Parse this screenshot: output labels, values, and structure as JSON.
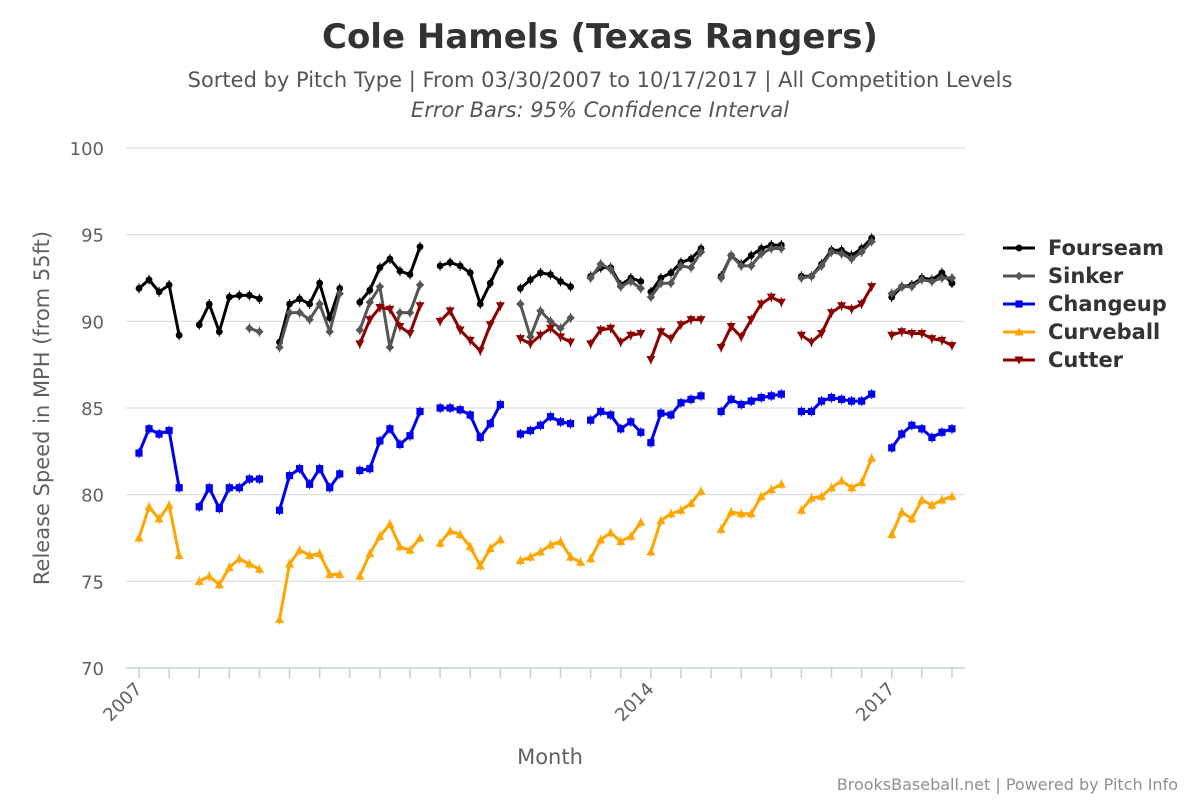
{
  "chart_data": {
    "type": "line",
    "title": "Cole Hamels (Texas Rangers)",
    "subtitle": "Sorted by Pitch Type | From 03/30/2007 to 10/17/2017 | All Competition Levels",
    "subtitle2": "Error Bars: 95% Confidence Interval",
    "xlabel": "Month",
    "ylabel": "Release Speed in MPH (from 55ft)",
    "ylim": [
      70,
      100
    ],
    "yticks": [
      70,
      75,
      80,
      85,
      90,
      95,
      100
    ],
    "xticks": [
      {
        "label": "2007",
        "index": 0
      },
      {
        "label": "2014",
        "index": 51
      },
      {
        "label": "2017",
        "index": 75
      }
    ],
    "x_count": 83,
    "grid": true,
    "error_bars": true,
    "legend_position": "right",
    "credit": "BrooksBaseball.net | Powered by Pitch Info",
    "series": [
      {
        "name": "Fourseam",
        "color": "#000000",
        "marker": "circle",
        "segments": [
          {
            "start": 0,
            "values": [
              91.9,
              92.4,
              91.7,
              92.1,
              89.2
            ]
          },
          {
            "start": 6,
            "values": [
              89.8,
              91.0,
              89.4,
              91.4,
              91.5,
              91.5,
              91.3
            ]
          },
          {
            "start": 14,
            "values": [
              88.8,
              91.0,
              91.3,
              91.0,
              92.2,
              90.2,
              91.9
            ]
          },
          {
            "start": 22,
            "values": [
              91.1,
              91.8,
              93.1,
              93.6,
              92.9,
              92.7,
              94.3
            ]
          },
          {
            "start": 30,
            "values": [
              93.2,
              93.4,
              93.2,
              92.8,
              91.0,
              92.2,
              93.4
            ]
          },
          {
            "start": 38,
            "values": [
              91.9,
              92.4,
              92.8,
              92.7,
              92.3,
              92.0
            ]
          },
          {
            "start": 45,
            "values": [
              92.6,
              93.1,
              93.1,
              92.1,
              92.5,
              92.3
            ]
          },
          {
            "start": 51,
            "values": [
              91.7,
              92.5,
              92.8,
              93.4,
              93.6,
              94.2
            ]
          },
          {
            "start": 58,
            "values": [
              92.6,
              93.8,
              93.3,
              93.8,
              94.2,
              94.4,
              94.4
            ]
          },
          {
            "start": 66,
            "values": [
              92.6,
              92.6,
              93.3,
              94.1,
              94.1,
              93.8,
              94.2,
              94.8
            ]
          },
          {
            "start": 75,
            "values": [
              91.4,
              92.0,
              92.1,
              92.5,
              92.4,
              92.8,
              92.2
            ]
          }
        ]
      },
      {
        "name": "Sinker",
        "color": "#555555",
        "marker": "diamond",
        "segments": [
          {
            "start": 11,
            "values": [
              89.6,
              89.4
            ]
          },
          {
            "start": 14,
            "values": [
              88.5,
              90.5,
              90.5,
              90.1,
              91.0,
              89.4,
              91.6
            ]
          },
          {
            "start": 22,
            "values": [
              89.5,
              91.1,
              92.0,
              88.5,
              90.5,
              90.5,
              92.1
            ]
          },
          {
            "start": 38,
            "values": [
              91.0,
              89.1,
              90.6,
              90.0,
              89.6,
              90.2
            ]
          },
          {
            "start": 45,
            "values": [
              92.5,
              93.3,
              93.0,
              92.0,
              92.3,
              91.9
            ]
          },
          {
            "start": 51,
            "values": [
              91.4,
              92.2,
              92.2,
              93.2,
              93.1,
              94.0
            ]
          },
          {
            "start": 58,
            "values": [
              92.5,
              93.8,
              93.2,
              93.2,
              93.9,
              94.2,
              94.2
            ]
          },
          {
            "start": 66,
            "values": [
              92.5,
              92.6,
              93.2,
              94.0,
              93.9,
              93.6,
              94.0,
              94.6
            ]
          },
          {
            "start": 75,
            "values": [
              91.6,
              92.0,
              92.0,
              92.4,
              92.3,
              92.5,
              92.5
            ]
          }
        ]
      },
      {
        "name": "Changeup",
        "color": "#0000ee",
        "marker": "square",
        "segments": [
          {
            "start": 0,
            "values": [
              82.4,
              83.8,
              83.5,
              83.7,
              80.4
            ]
          },
          {
            "start": 6,
            "values": [
              79.3,
              80.4,
              79.2,
              80.4,
              80.4,
              80.9,
              80.9
            ]
          },
          {
            "start": 14,
            "values": [
              79.1,
              81.1,
              81.5,
              80.6,
              81.5,
              80.4,
              81.2
            ]
          },
          {
            "start": 22,
            "values": [
              81.4,
              81.5,
              83.1,
              83.8,
              82.9,
              83.4,
              84.8
            ]
          },
          {
            "start": 30,
            "values": [
              85.0,
              85.0,
              84.9,
              84.6,
              83.3,
              84.1,
              85.2
            ]
          },
          {
            "start": 38,
            "values": [
              83.5,
              83.7,
              84.0,
              84.5,
              84.2,
              84.1
            ]
          },
          {
            "start": 45,
            "values": [
              84.3,
              84.8,
              84.6,
              83.8,
              84.2,
              83.6
            ]
          },
          {
            "start": 51,
            "values": [
              83.0,
              84.7,
              84.6,
              85.3,
              85.5,
              85.7
            ]
          },
          {
            "start": 58,
            "values": [
              84.8,
              85.5,
              85.2,
              85.4,
              85.6,
              85.7,
              85.8
            ]
          },
          {
            "start": 66,
            "values": [
              84.8,
              84.8,
              85.4,
              85.6,
              85.5,
              85.4,
              85.4,
              85.8
            ]
          },
          {
            "start": 75,
            "values": [
              82.7,
              83.5,
              84.0,
              83.8,
              83.3,
              83.6,
              83.8
            ]
          }
        ]
      },
      {
        "name": "Curveball",
        "color": "#ffa500",
        "marker": "triangle",
        "segments": [
          {
            "start": 0,
            "values": [
              77.5,
              79.3,
              78.6,
              79.4,
              76.5
            ]
          },
          {
            "start": 6,
            "values": [
              75.0,
              75.3,
              74.8,
              75.8,
              76.3,
              76.0,
              75.7
            ]
          },
          {
            "start": 14,
            "values": [
              72.8,
              76.0,
              76.8,
              76.5,
              76.6,
              75.4,
              75.4
            ]
          },
          {
            "start": 22,
            "values": [
              75.3,
              76.6,
              77.6,
              78.3,
              77.0,
              76.8,
              77.5
            ]
          },
          {
            "start": 30,
            "values": [
              77.2,
              77.9,
              77.7,
              77.0,
              75.9,
              76.9,
              77.4
            ]
          },
          {
            "start": 38,
            "values": [
              76.2,
              76.4,
              76.7,
              77.1,
              77.3,
              76.4,
              76.1
            ]
          },
          {
            "start": 45,
            "values": [
              76.3,
              77.4,
              77.8,
              77.3,
              77.6,
              78.4
            ]
          },
          {
            "start": 51,
            "values": [
              76.7,
              78.5,
              78.9,
              79.1,
              79.5,
              80.2
            ]
          },
          {
            "start": 58,
            "values": [
              78.0,
              79.0,
              78.9,
              78.9,
              79.9,
              80.3,
              80.6
            ]
          },
          {
            "start": 66,
            "values": [
              79.1,
              79.8,
              79.9,
              80.4,
              80.8,
              80.4,
              80.7,
              82.1
            ]
          },
          {
            "start": 75,
            "values": [
              77.7,
              79.0,
              78.6,
              79.7,
              79.4,
              79.7,
              79.9
            ]
          }
        ]
      },
      {
        "name": "Cutter",
        "color": "#8b0000",
        "marker": "triangle-down",
        "segments": [
          {
            "start": 22,
            "values": [
              88.7,
              90.1,
              90.8,
              90.7,
              89.7,
              89.3,
              90.9
            ]
          },
          {
            "start": 30,
            "values": [
              90.0,
              90.6,
              89.5,
              88.9,
              88.3,
              89.8,
              90.9
            ]
          },
          {
            "start": 38,
            "values": [
              89.0,
              88.7,
              89.2,
              89.6,
              89.1,
              88.8
            ]
          },
          {
            "start": 45,
            "values": [
              88.7,
              89.5,
              89.6,
              88.8,
              89.2,
              89.3
            ]
          },
          {
            "start": 51,
            "values": [
              87.8,
              89.4,
              89.0,
              89.8,
              90.1,
              90.1
            ]
          },
          {
            "start": 58,
            "values": [
              88.5,
              89.7,
              89.1,
              90.1,
              91.0,
              91.4,
              91.1
            ]
          },
          {
            "start": 66,
            "values": [
              89.2,
              88.8,
              89.3,
              90.5,
              90.9,
              90.7,
              91.0,
              92.0
            ]
          },
          {
            "start": 75,
            "values": [
              89.2,
              89.4,
              89.3,
              89.3,
              89.0,
              88.9,
              88.6
            ]
          }
        ]
      }
    ]
  }
}
